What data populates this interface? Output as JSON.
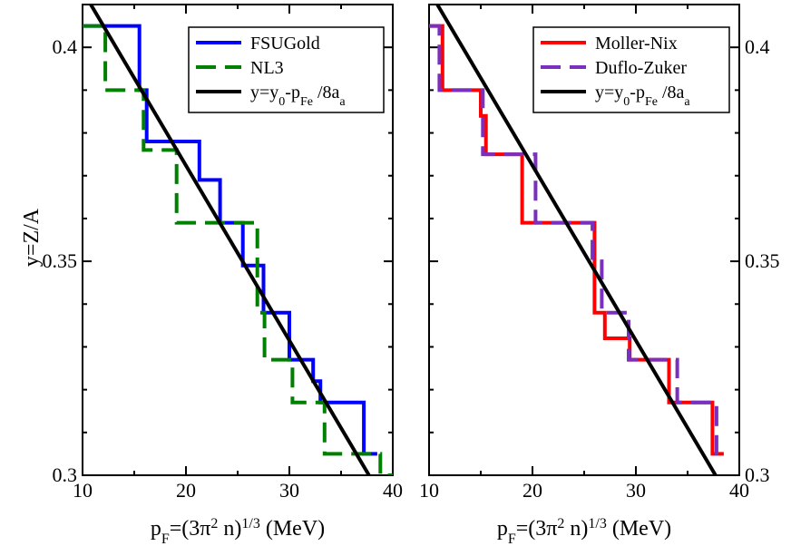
{
  "chart_data": [
    {
      "type": "line",
      "panel": "left",
      "xlabel": "p_F=(3π^2 n)^1/3 (MeV)",
      "xlabel_parts": {
        "p": "p",
        "F": "F",
        "eq": "=(3π",
        "two": "2",
        "n": " n)",
        "third": "1/3",
        "unit": " (MeV)"
      },
      "ylabel": "y=Z/A",
      "xlim": [
        10,
        40
      ],
      "ylim": [
        0.3,
        0.41
      ],
      "x_ticks": [
        "10",
        "20",
        "30",
        "40"
      ],
      "y_ticks": [
        "0.3",
        "0.35",
        "0.4"
      ],
      "y_tick_values": [
        0.3,
        0.35,
        0.4
      ],
      "y_ticks_side": "left",
      "legend_position": "top-right",
      "series": [
        {
          "name": "FSUGold",
          "color": "#0000ff",
          "style": "solid",
          "points": [
            [
              10,
              0.405
            ],
            [
              15.5,
              0.405
            ],
            [
              15.5,
              0.39
            ],
            [
              16.2,
              0.39
            ],
            [
              16.2,
              0.378
            ],
            [
              21.3,
              0.378
            ],
            [
              21.3,
              0.369
            ],
            [
              23.3,
              0.369
            ],
            [
              23.3,
              0.359
            ],
            [
              25.5,
              0.359
            ],
            [
              25.5,
              0.349
            ],
            [
              27.5,
              0.349
            ],
            [
              27.5,
              0.338
            ],
            [
              30.0,
              0.338
            ],
            [
              30.0,
              0.327
            ],
            [
              32.3,
              0.327
            ],
            [
              32.3,
              0.322
            ],
            [
              33.0,
              0.322
            ],
            [
              33.0,
              0.317
            ],
            [
              37.2,
              0.317
            ],
            [
              37.2,
              0.305
            ],
            [
              38.5,
              0.305
            ]
          ]
        },
        {
          "name": "NL3",
          "color": "#008000",
          "style": "dashed",
          "points": [
            [
              10,
              0.405
            ],
            [
              12.2,
              0.405
            ],
            [
              12.2,
              0.39
            ],
            [
              15.9,
              0.39
            ],
            [
              15.9,
              0.376
            ],
            [
              19.1,
              0.376
            ],
            [
              19.1,
              0.359
            ],
            [
              26.9,
              0.359
            ],
            [
              26.9,
              0.338
            ],
            [
              27.6,
              0.338
            ],
            [
              27.6,
              0.327
            ],
            [
              30.3,
              0.327
            ],
            [
              30.3,
              0.317
            ],
            [
              33.4,
              0.317
            ],
            [
              33.4,
              0.305
            ],
            [
              38.8,
              0.305
            ],
            [
              38.8,
              0.3
            ],
            [
              40,
              0.3
            ]
          ]
        },
        {
          "name": "y=y_0-p_Fe/8a_a",
          "label_parts": {
            "a": "y=y",
            "b": "0",
            "c": "-p",
            "d": "Fe",
            "e": " /8a",
            "f": "a"
          },
          "color": "#000000",
          "style": "solid",
          "points": [
            [
              10.8,
              0.41
            ],
            [
              37.7,
              0.3
            ]
          ]
        }
      ]
    },
    {
      "type": "line",
      "panel": "right",
      "xlabel": "p_F=(3π^2 n)^1/3 (MeV)",
      "xlabel_parts": {
        "p": "p",
        "F": "F",
        "eq": "=(3π",
        "two": "2",
        "n": " n)",
        "third": "1/3",
        "unit": " (MeV)"
      },
      "ylabel": "",
      "xlim": [
        10,
        40
      ],
      "ylim": [
        0.3,
        0.41
      ],
      "x_ticks": [
        "10",
        "20",
        "30",
        "40"
      ],
      "y_ticks": [
        "0.3",
        "0.35",
        "0.4"
      ],
      "y_tick_values": [
        0.3,
        0.35,
        0.4
      ],
      "y_ticks_side": "right",
      "legend_position": "top-right",
      "series": [
        {
          "name": "Moller-Nix",
          "color": "#ff0000",
          "style": "solid",
          "points": [
            [
              10,
              0.405
            ],
            [
              11.3,
              0.405
            ],
            [
              11.3,
              0.39
            ],
            [
              15.0,
              0.39
            ],
            [
              15.0,
              0.384
            ],
            [
              15.5,
              0.384
            ],
            [
              15.5,
              0.375
            ],
            [
              19.0,
              0.375
            ],
            [
              19.0,
              0.359
            ],
            [
              26.0,
              0.359
            ],
            [
              26.0,
              0.338
            ],
            [
              27.0,
              0.338
            ],
            [
              27.0,
              0.332
            ],
            [
              29.4,
              0.332
            ],
            [
              29.4,
              0.327
            ],
            [
              33.2,
              0.327
            ],
            [
              33.2,
              0.317
            ],
            [
              37.4,
              0.317
            ],
            [
              37.4,
              0.305
            ],
            [
              38.5,
              0.305
            ]
          ]
        },
        {
          "name": "Duflo-Zuker",
          "color": "#7b2fbe",
          "style": "dashed",
          "points": [
            [
              10,
              0.405
            ],
            [
              11.0,
              0.405
            ],
            [
              11.0,
              0.39
            ],
            [
              15.2,
              0.39
            ],
            [
              15.2,
              0.375
            ],
            [
              20.3,
              0.375
            ],
            [
              20.3,
              0.359
            ],
            [
              25.8,
              0.359
            ],
            [
              25.8,
              0.35
            ],
            [
              26.7,
              0.35
            ],
            [
              26.7,
              0.338
            ],
            [
              29.3,
              0.338
            ],
            [
              29.3,
              0.327
            ],
            [
              34.0,
              0.327
            ],
            [
              34.0,
              0.317
            ],
            [
              37.8,
              0.317
            ],
            [
              37.8,
              0.305
            ],
            [
              38.7,
              0.305
            ]
          ]
        },
        {
          "name": "y=y_0-p_Fe/8a_a",
          "label_parts": {
            "a": "y=y",
            "b": "0",
            "c": "-p",
            "d": "Fe",
            "e": " /8a",
            "f": "a"
          },
          "color": "#000000",
          "style": "solid",
          "points": [
            [
              10.8,
              0.41
            ],
            [
              37.7,
              0.3
            ]
          ]
        }
      ]
    }
  ]
}
